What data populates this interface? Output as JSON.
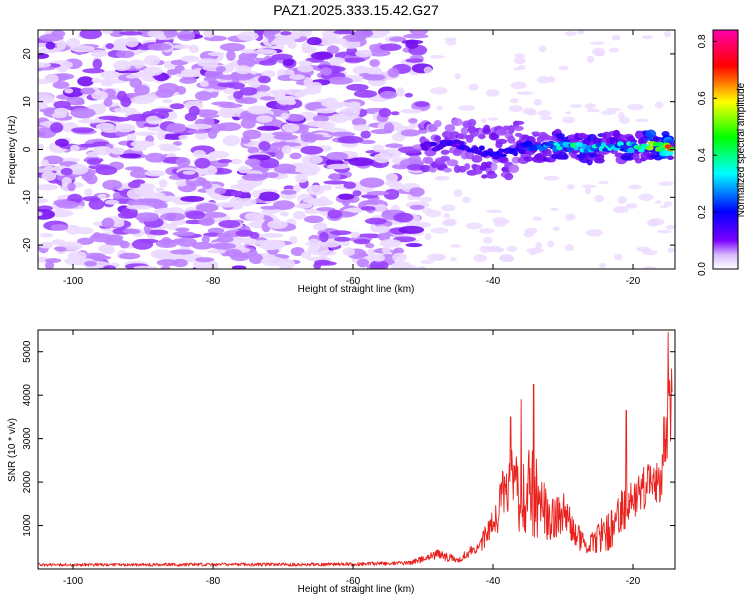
{
  "figure_title": "PAZ1.2025.333.15.42.G27",
  "chart_data": [
    {
      "type": "heatmap",
      "title": "PAZ1.2025.333.15.42.G27",
      "xlabel": "Height of straight line (km)",
      "ylabel": "Frequency (Hz)",
      "xlim": [
        -105,
        -14
      ],
      "ylim": [
        -25,
        25
      ],
      "x_ticks": [
        -100,
        -80,
        -60,
        -40,
        -20
      ],
      "y_ticks": [
        -20,
        -10,
        0,
        10,
        20
      ],
      "x_tick_labels": [
        "-100",
        "-80",
        "-60",
        "-40",
        "-20"
      ],
      "y_tick_labels": [
        "-20",
        "-10",
        "0",
        "10",
        "20"
      ],
      "noise_region": {
        "x_range": [
          -105,
          -50
        ],
        "y_range": [
          -25,
          25
        ],
        "amplitude_range": [
          0.02,
          0.12
        ]
      },
      "signal_band": [
        {
          "x": -50,
          "f": 0.5,
          "amp": 0.25
        },
        {
          "x": -45,
          "f": 1.0,
          "amp": 0.28
        },
        {
          "x": -40,
          "f": -1.0,
          "amp": 0.3
        },
        {
          "x": -35,
          "f": 0.5,
          "amp": 0.36
        },
        {
          "x": -30,
          "f": 0.8,
          "amp": 0.52
        },
        {
          "x": -25,
          "f": 0.3,
          "amp": 0.5
        },
        {
          "x": -20,
          "f": 0.6,
          "amp": 0.47
        },
        {
          "x": -15,
          "f": 0.6,
          "amp": 0.82
        }
      ],
      "colorbar": {
        "label": "Normalized spectral amplitude",
        "range": [
          0.0,
          0.84
        ],
        "ticks": [
          0.0,
          0.2,
          0.4,
          0.6,
          0.8
        ],
        "tick_labels": [
          "0.0",
          "0.2",
          "0.4",
          "0.6",
          "0.8"
        ],
        "colors": [
          "#ffffff",
          "#7a00ff",
          "#0000ff",
          "#00ffff",
          "#00ff00",
          "#ffff00",
          "#ff0000",
          "#ff00aa"
        ]
      }
    },
    {
      "type": "line",
      "title": "",
      "xlabel": "Height of straight line (km)",
      "ylabel": "SNR (10 * v/v)",
      "xlim": [
        -105,
        -14
      ],
      "ylim": [
        0,
        5500
      ],
      "x_ticks": [
        -100,
        -80,
        -60,
        -40,
        -20
      ],
      "y_ticks": [
        1000,
        2000,
        3000,
        4000,
        5000
      ],
      "x_tick_labels": [
        "-100",
        "-80",
        "-60",
        "-40",
        "-20"
      ],
      "y_tick_labels": [
        "1000",
        "2000",
        "3000",
        "4000",
        "5000"
      ],
      "series": [
        {
          "name": "SNR",
          "color": "#e8211d",
          "envelope": [
            {
              "x": -105,
              "base": 90,
              "spread": 70
            },
            {
              "x": -60,
              "base": 100,
              "spread": 80
            },
            {
              "x": -52,
              "base": 130,
              "spread": 90
            },
            {
              "x": -48,
              "base": 300,
              "spread": 250
            },
            {
              "x": -45,
              "base": 200,
              "spread": 150
            },
            {
              "x": -42,
              "base": 500,
              "spread": 300
            },
            {
              "x": -40,
              "base": 900,
              "spread": 800
            },
            {
              "x": -38,
              "base": 1800,
              "spread": 1700
            },
            {
              "x": -36,
              "base": 1500,
              "spread": 1800
            },
            {
              "x": -34,
              "base": 1600,
              "spread": 2200
            },
            {
              "x": -32,
              "base": 1000,
              "spread": 900
            },
            {
              "x": -30,
              "base": 1200,
              "spread": 1000
            },
            {
              "x": -27,
              "base": 500,
              "spread": 500
            },
            {
              "x": -24,
              "base": 700,
              "spread": 900
            },
            {
              "x": -22,
              "base": 1100,
              "spread": 1100
            },
            {
              "x": -20,
              "base": 1500,
              "spread": 900
            },
            {
              "x": -18,
              "base": 1800,
              "spread": 1200
            },
            {
              "x": -16,
              "base": 1900,
              "spread": 900
            },
            {
              "x": -14.5,
              "base": 3800,
              "spread": 2000
            }
          ],
          "peaks": [
            {
              "x": -37.5,
              "y": 3500
            },
            {
              "x": -36.0,
              "y": 3900
            },
            {
              "x": -34.2,
              "y": 4250
            },
            {
              "x": -21.0,
              "y": 3650
            },
            {
              "x": -15.6,
              "y": 3500
            },
            {
              "x": -15.0,
              "y": 5450
            }
          ]
        }
      ]
    }
  ]
}
